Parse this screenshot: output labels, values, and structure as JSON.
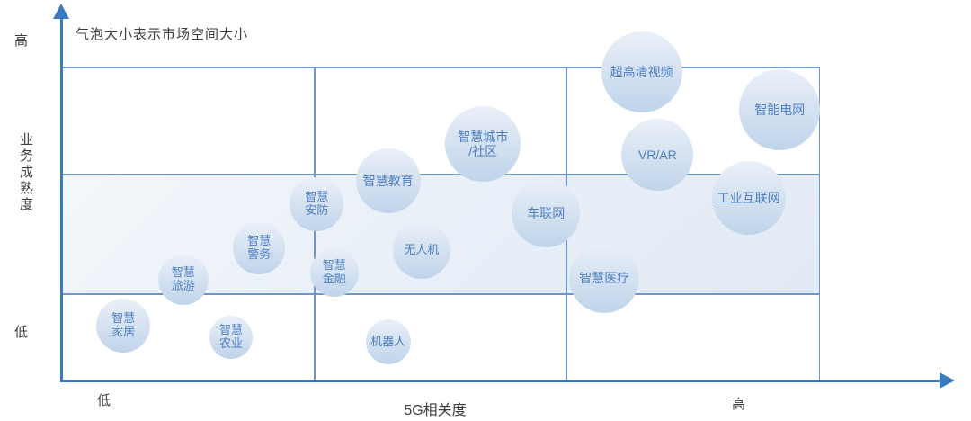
{
  "colors": {
    "axis": "#3c7ac0",
    "gridline": "#6e96cd",
    "bubble_fill_top": "#eaf0f8",
    "bubble_fill_bottom": "#bfd4ea",
    "bubble_text": "#4d80c0",
    "band_fill": "#e8eef7",
    "label_text": "#3d3d3d"
  },
  "chart_data": {
    "type": "bubble",
    "annotation": "气泡大小表示市场空间大小",
    "xlabel": "5G相关度",
    "ylabel": "业务成熟度",
    "x_tick_labels": [
      "低",
      "高"
    ],
    "y_tick_labels": [
      "低",
      "高"
    ],
    "grid": "on",
    "x_gridlines_rel": [
      0.334,
      0.666
    ],
    "y_gridlines_rel": [
      0.278,
      0.659
    ],
    "shaded_band_y_rel": [
      0.278,
      0.659
    ],
    "bubbles": [
      {
        "id": "uhd-video",
        "label": "超高清视频",
        "lines": [
          "超高清视频"
        ],
        "x": 0.765,
        "y": 0.986,
        "r": 45
      },
      {
        "id": "smart-grid",
        "label": "智能电网",
        "lines": [
          "智能电网"
        ],
        "x": 0.947,
        "y": 0.865,
        "r": 45
      },
      {
        "id": "smart-city-community",
        "label": "智慧城市/社区",
        "lines": [
          "智慧城市",
          "/社区"
        ],
        "x": 0.556,
        "y": 0.757,
        "r": 42
      },
      {
        "id": "vr-ar",
        "label": "VR/AR",
        "lines": [
          "VR/AR"
        ],
        "x": 0.786,
        "y": 0.722,
        "r": 40
      },
      {
        "id": "industrial-internet",
        "label": "工业互联网",
        "lines": [
          "工业互联网"
        ],
        "x": 0.906,
        "y": 0.585,
        "r": 41
      },
      {
        "id": "smart-education",
        "label": "智慧教育",
        "lines": [
          "智慧教育"
        ],
        "x": 0.431,
        "y": 0.639,
        "r": 36
      },
      {
        "id": "connected-vehicles",
        "label": "车联网",
        "lines": [
          "车联网"
        ],
        "x": 0.639,
        "y": 0.536,
        "r": 38
      },
      {
        "id": "smart-security",
        "label": "智慧安防",
        "lines": [
          "智慧",
          "安防"
        ],
        "x": 0.337,
        "y": 0.565,
        "r": 30
      },
      {
        "id": "smart-policing",
        "label": "智慧警务",
        "lines": [
          "智慧",
          "警务"
        ],
        "x": 0.261,
        "y": 0.424,
        "r": 29
      },
      {
        "id": "drone",
        "label": "无人机",
        "lines": [
          "无人机"
        ],
        "x": 0.475,
        "y": 0.418,
        "r": 32
      },
      {
        "id": "smart-finance",
        "label": "智慧金融",
        "lines": [
          "智慧",
          "金融"
        ],
        "x": 0.36,
        "y": 0.347,
        "r": 27
      },
      {
        "id": "smart-tourism",
        "label": "智慧旅游",
        "lines": [
          "智慧",
          "旅游"
        ],
        "x": 0.161,
        "y": 0.324,
        "r": 28
      },
      {
        "id": "smart-healthcare",
        "label": "智慧医疗",
        "lines": [
          "智慧医疗"
        ],
        "x": 0.716,
        "y": 0.33,
        "r": 39
      },
      {
        "id": "smart-home",
        "label": "智慧家居",
        "lines": [
          "智慧",
          "家居"
        ],
        "x": 0.082,
        "y": 0.178,
        "r": 30
      },
      {
        "id": "smart-agriculture",
        "label": "智慧农业",
        "lines": [
          "智慧",
          "农业"
        ],
        "x": 0.224,
        "y": 0.14,
        "r": 24
      },
      {
        "id": "robot",
        "label": "机器人",
        "lines": [
          "机器人"
        ],
        "x": 0.431,
        "y": 0.126,
        "r": 25
      }
    ]
  }
}
